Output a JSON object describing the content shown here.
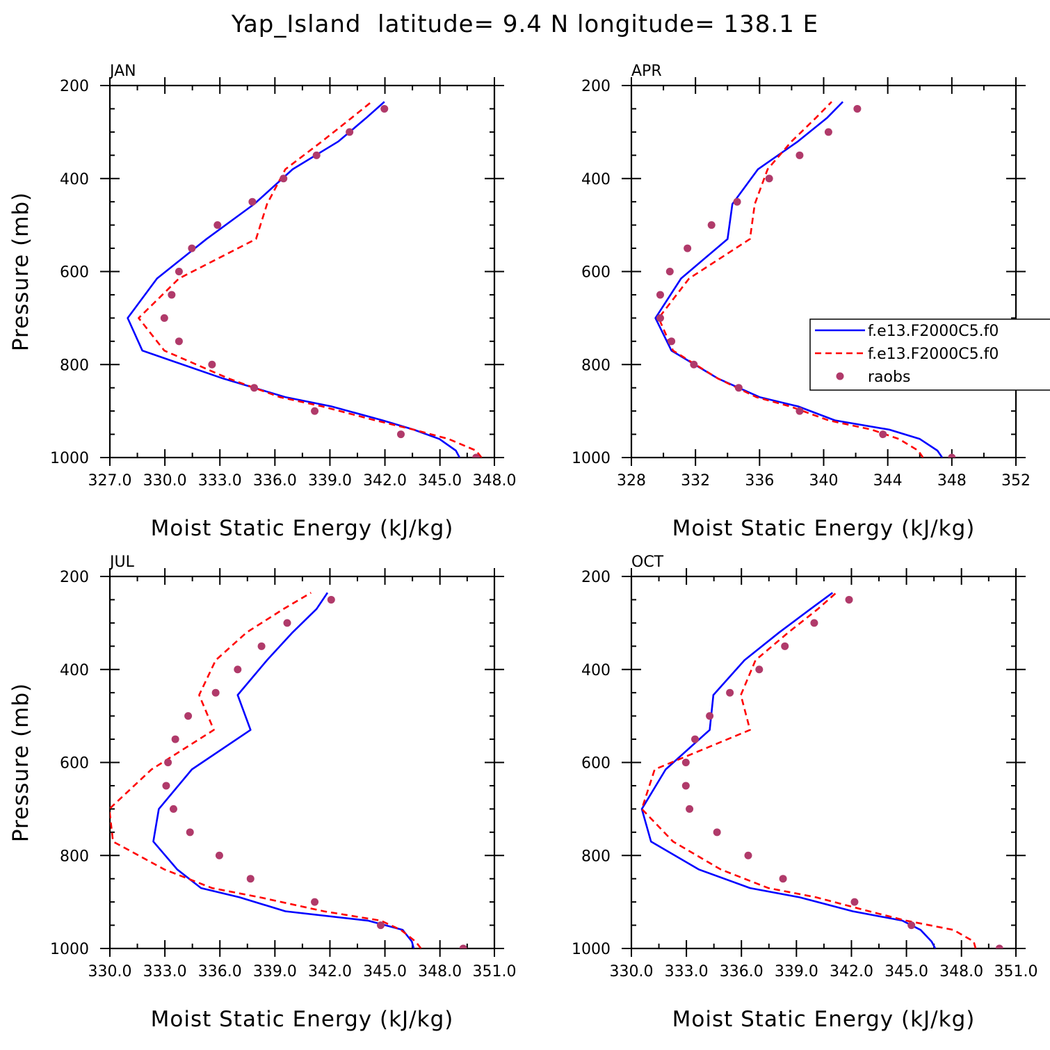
{
  "figure": {
    "title": "Yap_Island  latitude= 9.4 N longitude= 138.1 E"
  },
  "legend": {
    "entries": [
      {
        "label": "f.e13.F2000C5.f0",
        "style": "solid-line",
        "color": "#0000ff"
      },
      {
        "label": "f.e13.F2000C5.f0",
        "style": "dashed-line",
        "color": "#ff0000"
      },
      {
        "label": "raobs",
        "style": "marker",
        "color": "#b03a6a"
      }
    ]
  },
  "colors": {
    "model1": "#0000ff",
    "model2": "#ff0000",
    "obs": "#b03a6a"
  },
  "chart_data": [
    {
      "type": "line",
      "panel_label": "JAN",
      "xlabel": "Moist Static Energy (kJ/kg)",
      "ylabel": "Pressure (mb)",
      "xlim": [
        327.03,
        348.0
      ],
      "ylim": [
        1000,
        200
      ],
      "xticks": [
        327.03,
        330.03,
        333.03,
        336.03,
        339.03,
        342.03,
        345.03,
        348.0
      ],
      "xtick_labels": [
        "327.0",
        "330.0",
        "333.0",
        "336.0",
        "339.0",
        "342.0",
        "345.0",
        "348.0"
      ],
      "yticks": [
        200,
        400,
        600,
        800,
        1000
      ],
      "ytick_labels": [
        "200",
        "400",
        "600",
        "800",
        "1000"
      ],
      "grid": false,
      "series": [
        {
          "name": "f.e13.F2000C5.f0",
          "style": "solid",
          "pressure": [
            1000,
            985,
            960,
            940,
            920,
            890,
            870,
            830,
            770,
            700,
            615,
            530,
            455,
            380,
            320,
            270,
            235
          ],
          "values": [
            346.1,
            345.9,
            345.0,
            343.6,
            341.9,
            339.1,
            336.6,
            333.2,
            328.8,
            328.0,
            329.6,
            332.3,
            334.9,
            337.0,
            339.5,
            341.0,
            342.0
          ]
        },
        {
          "name": "f.e13.F2000C5.f0",
          "style": "dashed",
          "pressure": [
            1000,
            985,
            960,
            940,
            920,
            890,
            870,
            830,
            770,
            700,
            615,
            530,
            455,
            380,
            320,
            270,
            235
          ],
          "values": [
            347.3,
            347.0,
            345.5,
            343.6,
            341.5,
            338.6,
            336.3,
            333.5,
            330.0,
            328.6,
            330.8,
            335.0,
            335.6,
            336.6,
            338.6,
            340.2,
            341.3
          ]
        },
        {
          "name": "raobs",
          "style": "marker",
          "pressure": [
            1000,
            950,
            900,
            850,
            800,
            750,
            700,
            650,
            600,
            550,
            500,
            450,
            400,
            350,
            300,
            250
          ],
          "values": [
            347.0,
            342.9,
            338.2,
            334.9,
            332.6,
            330.8,
            330.0,
            330.4,
            330.8,
            331.5,
            332.9,
            334.8,
            336.5,
            338.3,
            340.1,
            342.0
          ]
        }
      ]
    },
    {
      "type": "line",
      "panel_label": "APR",
      "xlabel": "Moist Static Energy (kJ/kg)",
      "ylabel": "",
      "xlim": [
        328,
        352
      ],
      "ylim": [
        1000,
        200
      ],
      "xticks": [
        328,
        332,
        336,
        340,
        344,
        348,
        352
      ],
      "xtick_labels": [
        "328",
        "332",
        "336",
        "340",
        "344",
        "348",
        "352"
      ],
      "yticks": [
        200,
        400,
        600,
        800,
        1000
      ],
      "ytick_labels": [
        "200",
        "400",
        "600",
        "800",
        "1000"
      ],
      "grid": false,
      "series": [
        {
          "name": "f.e13.F2000C5.f0",
          "style": "solid",
          "pressure": [
            1000,
            985,
            960,
            940,
            920,
            890,
            870,
            830,
            770,
            700,
            615,
            530,
            455,
            380,
            320,
            270,
            235
          ],
          "values": [
            347.4,
            347.1,
            346.0,
            344.1,
            340.7,
            338.4,
            336.0,
            333.4,
            330.5,
            329.5,
            331.1,
            334.0,
            334.3,
            335.9,
            338.4,
            340.2,
            341.2
          ]
        },
        {
          "name": "f.e13.F2000C5.f0",
          "style": "dashed",
          "pressure": [
            1000,
            985,
            960,
            940,
            920,
            890,
            870,
            830,
            770,
            700,
            615,
            530,
            455,
            380,
            320,
            270,
            235
          ],
          "values": [
            346.2,
            345.9,
            344.7,
            343.0,
            340.3,
            337.9,
            335.8,
            333.4,
            330.6,
            329.7,
            331.6,
            335.4,
            335.7,
            336.5,
            338.0,
            339.5,
            340.5
          ]
        },
        {
          "name": "raobs",
          "style": "marker",
          "pressure": [
            1000,
            950,
            900,
            850,
            800,
            750,
            700,
            650,
            600,
            550,
            500,
            450,
            400,
            350,
            300,
            250
          ],
          "values": [
            348.0,
            343.7,
            338.5,
            334.7,
            331.9,
            330.5,
            329.8,
            329.8,
            330.4,
            331.5,
            333.0,
            334.6,
            336.6,
            338.5,
            340.3,
            342.1
          ]
        }
      ]
    },
    {
      "type": "line",
      "panel_label": "JUL",
      "xlabel": "Moist Static Energy (kJ/kg)",
      "ylabel": "Pressure (mb)",
      "xlim": [
        330.03,
        351.0
      ],
      "ylim": [
        1000,
        200
      ],
      "xticks": [
        330.03,
        333.03,
        336.03,
        339.03,
        342.03,
        345.03,
        348.03,
        351.0
      ],
      "xtick_labels": [
        "330.0",
        "333.0",
        "336.0",
        "339.0",
        "342.0",
        "345.0",
        "348.0",
        "351.0"
      ],
      "yticks": [
        200,
        400,
        600,
        800,
        1000
      ],
      "ytick_labels": [
        "200",
        "400",
        "600",
        "800",
        "1000"
      ],
      "grid": false,
      "series": [
        {
          "name": "f.e13.F2000C5.f0",
          "style": "solid",
          "pressure": [
            1000,
            985,
            960,
            940,
            920,
            890,
            870,
            830,
            770,
            700,
            615,
            530,
            455,
            380,
            320,
            270,
            235
          ],
          "values": [
            346.6,
            346.5,
            346.0,
            344.1,
            339.6,
            337.1,
            335.0,
            333.7,
            332.4,
            332.7,
            334.5,
            337.7,
            337.0,
            338.6,
            340.0,
            341.3,
            341.9
          ]
        },
        {
          "name": "f.e13.F2000C5.f0",
          "style": "dashed",
          "pressure": [
            1000,
            985,
            960,
            940,
            920,
            890,
            870,
            830,
            770,
            700,
            615,
            530,
            455,
            380,
            320,
            270,
            235
          ],
          "values": [
            347.0,
            346.7,
            345.9,
            344.8,
            341.7,
            338.2,
            335.6,
            333.0,
            330.2,
            330.0,
            332.3,
            335.7,
            334.9,
            335.8,
            337.5,
            339.5,
            341.0
          ]
        },
        {
          "name": "raobs",
          "style": "marker",
          "pressure": [
            1000,
            950,
            900,
            850,
            800,
            750,
            700,
            650,
            600,
            550,
            500,
            450,
            400,
            350,
            300,
            250
          ],
          "values": [
            349.3,
            344.8,
            341.2,
            337.7,
            336.0,
            334.4,
            333.5,
            333.1,
            333.2,
            333.6,
            334.3,
            335.8,
            337.0,
            338.3,
            339.7,
            342.1
          ]
        }
      ]
    },
    {
      "type": "line",
      "panel_label": "OCT",
      "xlabel": "Moist Static Energy (kJ/kg)",
      "ylabel": "",
      "xlim": [
        330.03,
        351.0
      ],
      "ylim": [
        1000,
        200
      ],
      "xticks": [
        330.03,
        333.03,
        336.03,
        339.03,
        342.03,
        345.03,
        348.03,
        351.0
      ],
      "xtick_labels": [
        "330.0",
        "333.0",
        "336.0",
        "339.0",
        "342.0",
        "345.0",
        "348.0",
        "351.0"
      ],
      "yticks": [
        200,
        400,
        600,
        800,
        1000
      ],
      "ytick_labels": [
        "200",
        "400",
        "600",
        "800",
        "1000"
      ],
      "grid": false,
      "series": [
        {
          "name": "f.e13.F2000C5.f0",
          "style": "solid",
          "pressure": [
            1000,
            985,
            960,
            940,
            920,
            890,
            870,
            830,
            770,
            700,
            615,
            530,
            455,
            380,
            320,
            270,
            235
          ],
          "values": [
            346.6,
            346.4,
            345.8,
            344.8,
            342.1,
            339.2,
            336.5,
            333.7,
            331.1,
            330.6,
            331.9,
            334.3,
            334.5,
            336.2,
            338.1,
            339.8,
            341.0
          ]
        },
        {
          "name": "f.e13.F2000C5.f0",
          "style": "dashed",
          "pressure": [
            1000,
            985,
            960,
            940,
            920,
            890,
            870,
            830,
            770,
            700,
            615,
            530,
            455,
            380,
            320,
            270,
            235
          ],
          "values": [
            348.8,
            348.7,
            347.6,
            345.0,
            343.0,
            340.1,
            337.5,
            334.9,
            332.3,
            330.6,
            331.3,
            336.5,
            336.0,
            336.8,
            338.6,
            340.2,
            341.2
          ]
        },
        {
          "name": "raobs",
          "style": "marker",
          "pressure": [
            1000,
            950,
            900,
            850,
            800,
            750,
            700,
            650,
            600,
            550,
            500,
            450,
            400,
            350,
            300,
            250
          ],
          "values": [
            350.1,
            345.3,
            342.2,
            338.3,
            336.4,
            334.7,
            333.2,
            333.0,
            333.0,
            333.5,
            334.3,
            335.4,
            337.0,
            338.4,
            340.0,
            341.9
          ]
        }
      ]
    }
  ]
}
